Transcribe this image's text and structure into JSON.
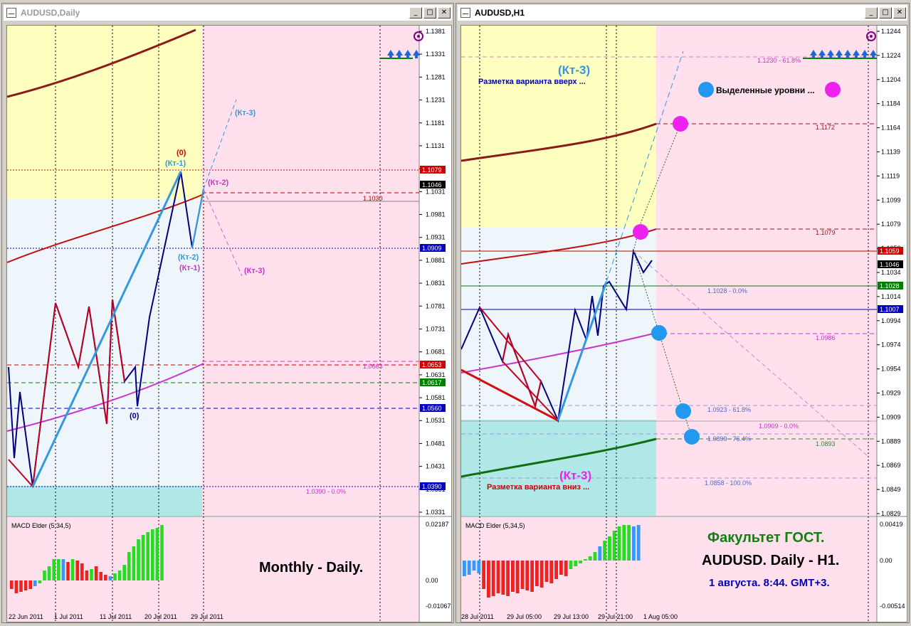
{
  "windows": [
    {
      "title": "AUDUSD,Daily",
      "price_axis": [
        "1.1381",
        "1.1331",
        "1.1281",
        "1.1231",
        "1.1181",
        "1.1131",
        "1.1081",
        "1.1031",
        "1.0981",
        "1.0931",
        "1.0881",
        "1.0831",
        "1.0781",
        "1.0731",
        "1.0681",
        "1.0631",
        "1.0581",
        "1.0531",
        "1.0481",
        "1.0431",
        "1.0381",
        "1.0331"
      ],
      "price_tags": [
        {
          "text": "1.1079",
          "bg": "#d00000"
        },
        {
          "text": "1.1046",
          "bg": "#000000"
        },
        {
          "text": "1.0909",
          "bg": "#0000c0"
        },
        {
          "text": "1.0653",
          "bg": "#d00000"
        },
        {
          "text": "1.0617",
          "bg": "#008000"
        },
        {
          "text": "1.0560",
          "bg": "#0000c0"
        },
        {
          "text": "1.0390",
          "bg": "#0000c0"
        }
      ],
      "level_labels": [
        "1.1030",
        "1.0663",
        "1.0390 - 0.0%"
      ],
      "wave_labels": [
        "(0)",
        "(Кт-1)",
        "(Кт-2)",
        "(Кт-3)",
        "(Кт-2)",
        "(Кт-1)",
        "(Кт-3)",
        "(0)"
      ],
      "time_axis": [
        "22 Jun 2011",
        "1 Jul 2011",
        "11 Jul 2011",
        "20 Jul 2011",
        "29 Jul 2011"
      ],
      "indicator": {
        "name": "MACD Elder (5,34,5)",
        "scale": [
          "0.02187",
          "0.00",
          "-0.01067"
        ]
      },
      "caption": "Monthly - Daily."
    },
    {
      "title": "AUDUSD,H1",
      "price_axis": [
        "1.1244",
        "1.1224",
        "1.1204",
        "1.1184",
        "1.1164",
        "1.1139",
        "1.1119",
        "1.1099",
        "1.1079",
        "1.1059",
        "1.1034",
        "1.1014",
        "1.0994",
        "1.0974",
        "1.0954",
        "1.0929",
        "1.0909",
        "1.0889",
        "1.0869",
        "1.0849",
        "1.0829"
      ],
      "price_tags": [
        {
          "text": "1.1059",
          "bg": "#d00000"
        },
        {
          "text": "1.1046",
          "bg": "#000000"
        },
        {
          "text": "1.1028",
          "bg": "#008000"
        },
        {
          "text": "1.1007",
          "bg": "#0000c0"
        }
      ],
      "level_labels": [
        "1.1230 - 61.8%",
        "1.1172",
        "1.1079",
        "1.1028 - 0.0%",
        "1.0986",
        "1.0923 - 61.8%",
        "1.0909 - 0.0%",
        "1.0899 - 76.4%",
        "1.0893",
        "1.0858 - 100.0%"
      ],
      "annotations": {
        "up_wave": "(Кт-3)",
        "up_text": "Разметка варианта вверх ...",
        "down_wave": "(Кт-3)",
        "down_text": "Разметка варианта вниз ...",
        "highlight": "Выделенные уровни ..."
      },
      "time_axis": [
        "28 Jul 2011",
        "29 Jul 05:00",
        "29 Jul 13:00",
        "29 Jul 21:00",
        "1 Aug 05:00"
      ],
      "indicator": {
        "name": "MACD Elder (5,34,5)",
        "scale": [
          "0.00419",
          "0.00",
          "-0.00514"
        ]
      },
      "caption": {
        "line1": "Факультет ГОСТ.",
        "line2": "AUDUSD. Daily - H1.",
        "line3": "1 августа. 8:44. GMT+3."
      }
    }
  ],
  "colors": {
    "bull": "#000080",
    "bear": "#c00020",
    "pink_zone": "#ffe0ec",
    "yellow_zone": "#ffffc0",
    "blue_zone": "#eef6fc",
    "cyan_zone": "#b0e8e8",
    "macd_up": "#22dd22",
    "macd_down": "#ee2222",
    "macd_flat": "#3399ff"
  },
  "icons": [
    "chart-window-icon",
    "minimize-icon",
    "maximize-icon",
    "close-icon",
    "target-icon",
    "up-arrows-icon"
  ]
}
